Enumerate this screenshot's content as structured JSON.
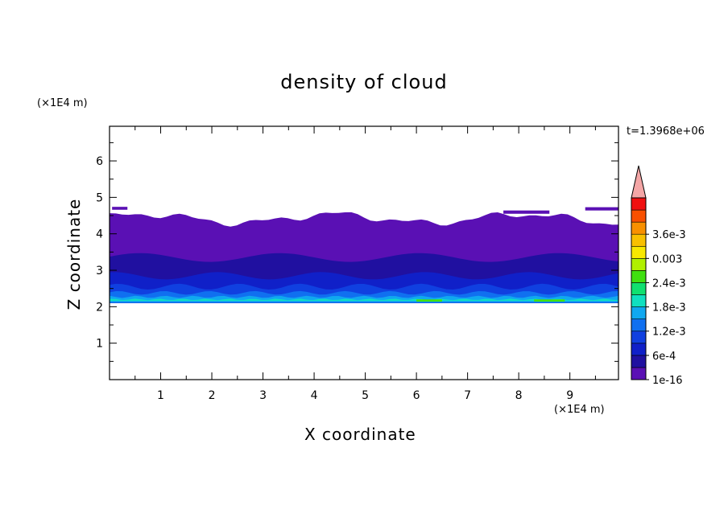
{
  "chart_data": {
    "type": "heatmap",
    "title": "density of cloud",
    "xlabel": "X coordinate",
    "ylabel": "Z coordinate",
    "x_unit": "(×1E4 m)",
    "y_unit": "(×1E4 m)",
    "time_label": "t=1.3968e+06",
    "xlim": [
      0,
      9.95
    ],
    "ylim": [
      0,
      6.95
    ],
    "x_ticks": [
      1,
      2,
      3,
      4,
      5,
      6,
      7,
      8,
      9
    ],
    "y_ticks": [
      1,
      2,
      3,
      4,
      5,
      6
    ],
    "cloud_base_z": 2.1,
    "cloud_top_z_range": [
      4.3,
      4.75
    ],
    "colorbar": {
      "labels": [
        "1e-16",
        "6e-4",
        "1.2e-3",
        "1.8e-3",
        "2.4e-3",
        "0.003",
        "3.6e-3"
      ],
      "colors": [
        "#5a10b4",
        "#2010a0",
        "#1020c8",
        "#1040e0",
        "#1070f0",
        "#10a8f0",
        "#10e0c0",
        "#10e070",
        "#40e010",
        "#b0f000",
        "#f8e800",
        "#f8c000",
        "#f89000",
        "#f85000",
        "#f01010"
      ],
      "extend_color": "#f4a6a6"
    },
    "layers": [
      {
        "z_range": [
          3.2,
          4.5
        ],
        "level": "1e-16"
      },
      {
        "z_range": [
          2.6,
          3.2
        ],
        "level": "6e-4"
      },
      {
        "z_range": [
          2.3,
          2.6
        ],
        "level": "1.2e-3"
      },
      {
        "z_range": [
          2.1,
          2.3
        ],
        "level": "1.8e-3"
      }
    ]
  }
}
